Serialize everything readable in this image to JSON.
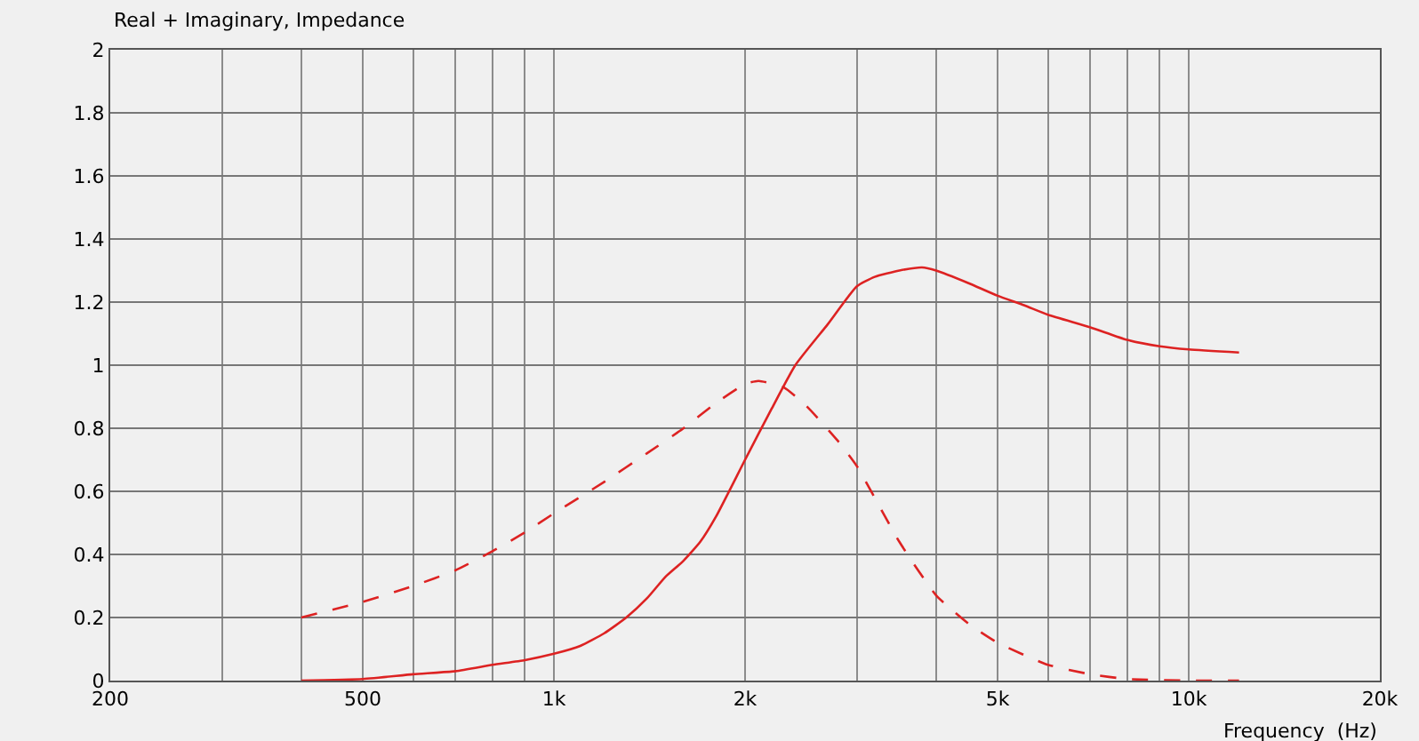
{
  "chart_data": {
    "type": "line",
    "title": "Real + Imaginary, Impedance",
    "xlabel": "Frequency  (Hz)",
    "log": "x",
    "grid": true,
    "marker": "none",
    "xlim": [
      200,
      20000
    ],
    "xticks": [
      200,
      {
        "value": 300,
        "label": null
      },
      {
        "value": 400,
        "label": null
      },
      500,
      {
        "value": 600,
        "label": null
      },
      {
        "value": 700,
        "label": null
      },
      {
        "value": 800,
        "label": null
      },
      {
        "value": 900,
        "label": null
      },
      {
        "value": 1000,
        "label": "1k"
      },
      {
        "value": 2000,
        "label": "2k"
      },
      {
        "value": 3000,
        "label": null
      },
      {
        "value": 4000,
        "label": null
      },
      {
        "value": 5000,
        "label": "5k"
      },
      {
        "value": 6000,
        "label": null
      },
      {
        "value": 7000,
        "label": null
      },
      {
        "value": 8000,
        "label": null
      },
      {
        "value": 9000,
        "label": null
      },
      {
        "value": 10000,
        "label": "10k"
      },
      {
        "value": 20000,
        "label": "20k"
      }
    ],
    "ylim": [
      0,
      2
    ],
    "yticks": [
      0,
      0.2,
      0.4,
      0.6,
      0.8,
      1,
      1.2,
      1.4,
      1.6,
      1.8,
      2
    ],
    "series": [
      {
        "color": "#dd2222",
        "line_style": "solid",
        "x": [
          400,
          500,
          600,
          700,
          800,
          900,
          1000,
          1100,
          1200,
          1300,
          1400,
          1500,
          1600,
          1700,
          1800,
          2000,
          2200,
          2400,
          2700,
          3000,
          3200,
          3500,
          3800,
          4000,
          4500,
          5000,
          5500,
          6000,
          7000,
          8000,
          9000,
          10000,
          12000
        ],
        "values": [
          0,
          0.005,
          0.02,
          0.03,
          0.05,
          0.065,
          0.085,
          0.11,
          0.15,
          0.2,
          0.26,
          0.33,
          0.38,
          0.44,
          0.52,
          0.7,
          0.86,
          1.0,
          1.13,
          1.25,
          1.28,
          1.3,
          1.31,
          1.3,
          1.26,
          1.22,
          1.19,
          1.16,
          1.12,
          1.08,
          1.06,
          1.05,
          1.04
        ]
      },
      {
        "color": "#dd2222",
        "line_style": "dashed",
        "x": [
          400,
          500,
          600,
          700,
          800,
          900,
          1000,
          1200,
          1400,
          1600,
          1800,
          2000,
          2100,
          2300,
          2500,
          2800,
          3000,
          3500,
          4000,
          4500,
          5000,
          6000,
          7000,
          8000,
          10000,
          12000
        ],
        "values": [
          0.2,
          0.25,
          0.3,
          0.35,
          0.41,
          0.47,
          0.53,
          0.63,
          0.72,
          0.8,
          0.88,
          0.94,
          0.95,
          0.93,
          0.87,
          0.76,
          0.68,
          0.44,
          0.27,
          0.18,
          0.12,
          0.05,
          0.02,
          0.005,
          0,
          0
        ]
      }
    ]
  }
}
